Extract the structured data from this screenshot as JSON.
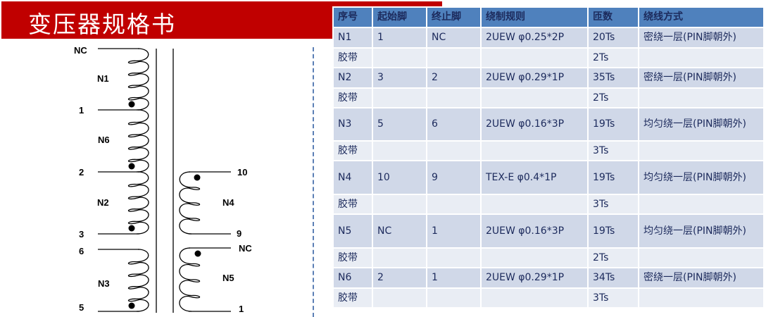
{
  "title": "变压器规格书",
  "colors": {
    "title_bg": "#c00000",
    "header_bg": "#4f81bd",
    "row_winding": "#d0d8e8",
    "row_tape": "#e9edf4",
    "text": "#1c2a5c"
  },
  "diagram": {
    "left_pins": [
      "NC",
      "1",
      "2",
      "3",
      "6",
      "5"
    ],
    "left_windings": [
      "N1",
      "N6",
      "N2",
      "N3"
    ],
    "right_pins": [
      "10",
      "9",
      "NC",
      "1"
    ],
    "right_windings": [
      "N4",
      "N5"
    ]
  },
  "table": {
    "headers": [
      "序号",
      "起始脚",
      "终止脚",
      "绕制规则",
      "匝数",
      "绕线方式"
    ],
    "rows": [
      [
        "N1",
        "1",
        "NC",
        "2UEW φ0.25*2P",
        "20Ts",
        "密绕一层(PIN脚朝外)"
      ],
      [
        "胶带",
        "",
        "",
        "",
        "2Ts",
        ""
      ],
      [
        "N2",
        "3",
        "2",
        "2UEW φ0.29*1P",
        "35Ts",
        "密绕一层(PIN脚朝外)"
      ],
      [
        "胶带",
        "",
        "",
        "",
        "2Ts",
        ""
      ],
      [
        "N3",
        "5",
        "6",
        "2UEW φ0.16*3P",
        "19Ts",
        "均匀绕一层(PIN脚朝外)"
      ],
      [
        "胶带",
        "",
        "",
        "",
        "3Ts",
        ""
      ],
      [
        "N4",
        "10",
        "9",
        "TEX-E φ0.4*1P",
        "19Ts",
        "均匀绕一层(PIN脚朝外)"
      ],
      [
        "胶带",
        "",
        "",
        "",
        "3Ts",
        ""
      ],
      [
        "N5",
        "NC",
        "1",
        "2UEW φ0.16*3P",
        "19Ts",
        "均匀绕一层(PIN脚朝外)"
      ],
      [
        "胶带",
        "",
        "",
        "",
        "2Ts",
        ""
      ],
      [
        "N6",
        "2",
        "1",
        "2UEW φ0.29*1P",
        "34Ts",
        "密绕一层(PIN脚朝外)"
      ],
      [
        "胶带",
        "",
        "",
        "",
        "3Ts",
        ""
      ]
    ]
  }
}
